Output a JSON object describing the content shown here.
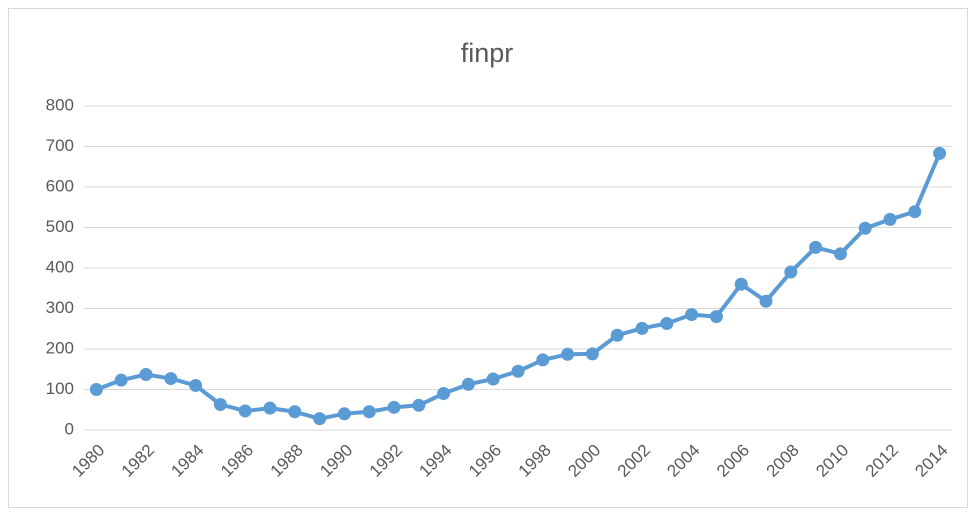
{
  "chart_data": {
    "type": "line",
    "title": "finpr",
    "categories": [
      "1980",
      null,
      "1982",
      null,
      "1984",
      null,
      "1986",
      null,
      "1988",
      null,
      "1990",
      null,
      "1992",
      null,
      "1994",
      null,
      "1996",
      null,
      "1998",
      null,
      "2000",
      null,
      "2002",
      null,
      "2004",
      null,
      "2006",
      null,
      "2008",
      null,
      "2010",
      null,
      "2012",
      null,
      "2014"
    ],
    "values": [
      100,
      123,
      137,
      127,
      110,
      63,
      47,
      54,
      45,
      28,
      40,
      45,
      56,
      61,
      90,
      113,
      126,
      145,
      173,
      187,
      188,
      234,
      251,
      263,
      285,
      280,
      360,
      318,
      390,
      451,
      435,
      498,
      520,
      539,
      683
    ],
    "color": "#5b9bd5",
    "ylim": [
      0,
      800
    ],
    "yticks": [
      0,
      100,
      200,
      300,
      400,
      500,
      600,
      700,
      800
    ],
    "grid": true
  }
}
